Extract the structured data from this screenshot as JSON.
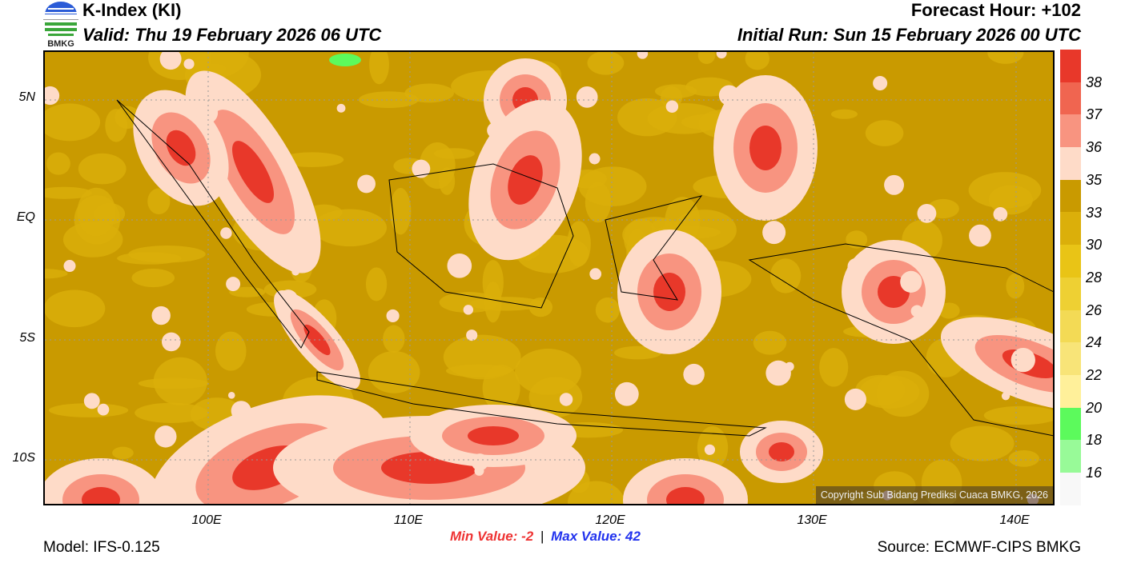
{
  "header": {
    "title": "K-Index (KI)",
    "valid": "Valid: Thu 19 February 2026 06 UTC",
    "forecast_hour": "Forecast Hour: +102",
    "initial_run": "Initial Run: Sun 15 February 2026 00 UTC",
    "logo_text": "BMKG"
  },
  "map": {
    "lat_labels": [
      "5N",
      "EQ",
      "5S",
      "10S"
    ],
    "lon_labels": [
      "100E",
      "110E",
      "120E",
      "130E",
      "140E"
    ],
    "copyright": "Copyright Sub Bidang Prediksi Cuaca BMKG, 2026"
  },
  "colorbar": {
    "colors": [
      "#e8382a",
      "#f06550",
      "#f89480",
      "#fedbc8",
      "#c99a00",
      "#dbaf0a",
      "#e9c416",
      "#eed033",
      "#f3da55",
      "#f8e478",
      "#fff09a",
      "#5cfa5c",
      "#98fa98",
      "#f8f8f8"
    ],
    "labels": [
      "38",
      "37",
      "36",
      "35",
      "33",
      "30",
      "28",
      "26",
      "24",
      "22",
      "20",
      "18",
      "16"
    ]
  },
  "footer": {
    "min_label": "Min Value:  -2",
    "separator": "|",
    "max_label": "Max Value:  42",
    "min_color": "#ee3333",
    "max_color": "#2233ee",
    "model": "Model: IFS-0.125",
    "source": "Source: ECMWF-CIPS BMKG"
  }
}
